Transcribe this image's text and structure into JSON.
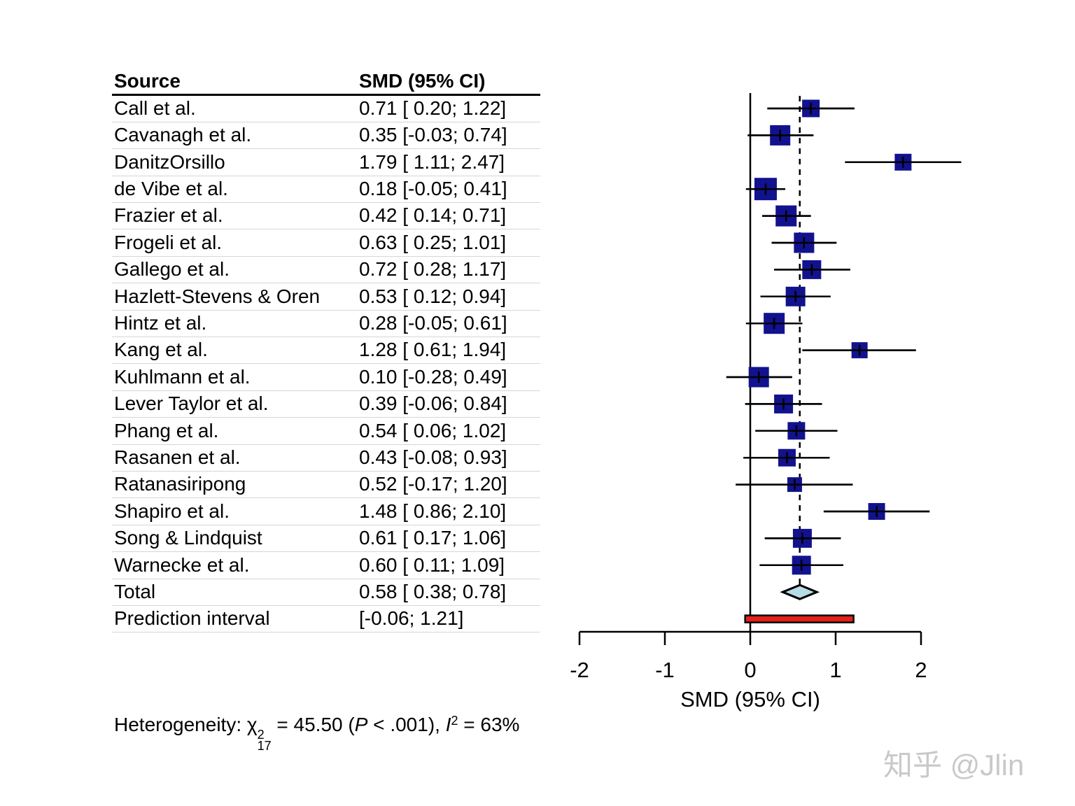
{
  "table": {
    "header": {
      "source": "Source",
      "value": "SMD (95% CI)"
    }
  },
  "heterogeneity": {
    "prefix": "Heterogeneity: ",
    "chi": "χ",
    "chi_sup": "2",
    "chi_sub": "17",
    "mid1": " = 45.50 (",
    "p": "P",
    "mid2": " < .001), ",
    "i": "I",
    "i_sup": "2",
    "suffix": " = 63%"
  },
  "watermark": {
    "text": "知乎 @Jlin"
  },
  "chart_data": {
    "type": "forest",
    "xlabel": "SMD (95% CI)",
    "x_ticks": [
      -2,
      -1,
      0,
      1,
      2
    ],
    "xlim": [
      -2,
      2.6
    ],
    "zero_line": 0,
    "pooled_estimate": 0.58,
    "grid": false,
    "colors": {
      "square": "#12128f",
      "diamond_fill": "#b7dce8",
      "prediction_fill": "#e32219",
      "line": "#000000",
      "separator": "#d6d6d6"
    },
    "studies": [
      {
        "label": "Call et al.",
        "smd": 0.71,
        "lower": 0.2,
        "upper": 1.22,
        "ci_text": "0.71 [ 0.20; 1.22]",
        "size": 25
      },
      {
        "label": "Cavanagh et al.",
        "smd": 0.35,
        "lower": -0.03,
        "upper": 0.74,
        "ci_text": "0.35 [-0.03; 0.74]",
        "size": 29
      },
      {
        "label": "DanitzOrsillo",
        "smd": 1.79,
        "lower": 1.11,
        "upper": 2.47,
        "ci_text": "1.79 [ 1.11; 2.47]",
        "size": 24
      },
      {
        "label": "de Vibe et al.",
        "smd": 0.18,
        "lower": -0.05,
        "upper": 0.41,
        "ci_text": "0.18 [-0.05; 0.41]",
        "size": 32
      },
      {
        "label": "Frazier et al.",
        "smd": 0.42,
        "lower": 0.14,
        "upper": 0.71,
        "ci_text": "0.42 [ 0.14; 0.71]",
        "size": 30
      },
      {
        "label": "Frogeli et al.",
        "smd": 0.63,
        "lower": 0.25,
        "upper": 1.01,
        "ci_text": "0.63 [ 0.25; 1.01]",
        "size": 29
      },
      {
        "label": "Gallego et al.",
        "smd": 0.72,
        "lower": 0.28,
        "upper": 1.17,
        "ci_text": "0.72 [ 0.28; 1.17]",
        "size": 27
      },
      {
        "label": "Hazlett-Stevens & Oren",
        "smd": 0.53,
        "lower": 0.12,
        "upper": 0.94,
        "ci_text": "0.53 [ 0.12; 0.94]",
        "size": 28
      },
      {
        "label": "Hintz et al.",
        "smd": 0.28,
        "lower": -0.05,
        "upper": 0.61,
        "ci_text": "0.28 [-0.05; 0.61]",
        "size": 30
      },
      {
        "label": "Kang et al.",
        "smd": 1.28,
        "lower": 0.61,
        "upper": 1.94,
        "ci_text": "1.28 [ 0.61; 1.94]",
        "size": 23
      },
      {
        "label": "Kuhlmann et al.",
        "smd": 0.1,
        "lower": -0.28,
        "upper": 0.49,
        "ci_text": "0.10 [-0.28; 0.49]",
        "size": 29
      },
      {
        "label": "Lever Taylor et al.",
        "smd": 0.39,
        "lower": -0.06,
        "upper": 0.84,
        "ci_text": "0.39 [-0.06; 0.84]",
        "size": 27
      },
      {
        "label": "Phang et al.",
        "smd": 0.54,
        "lower": 0.06,
        "upper": 1.02,
        "ci_text": "0.54 [ 0.06; 1.02]",
        "size": 25
      },
      {
        "label": "Rasanen et al.",
        "smd": 0.43,
        "lower": -0.08,
        "upper": 0.93,
        "ci_text": "0.43 [-0.08; 0.93]",
        "size": 25
      },
      {
        "label": "Ratanasiripong",
        "smd": 0.52,
        "lower": -0.17,
        "upper": 1.2,
        "ci_text": "0.52 [-0.17; 1.20]",
        "size": 21
      },
      {
        "label": "Shapiro et al.",
        "smd": 1.48,
        "lower": 0.86,
        "upper": 2.1,
        "ci_text": "1.48 [ 0.86; 2.10]",
        "size": 24
      },
      {
        "label": "Song & Lindquist",
        "smd": 0.61,
        "lower": 0.17,
        "upper": 1.06,
        "ci_text": "0.61 [ 0.17; 1.06]",
        "size": 27
      },
      {
        "label": "Warnecke et al.",
        "smd": 0.6,
        "lower": 0.11,
        "upper": 1.09,
        "ci_text": "0.60 [ 0.11; 1.09]",
        "size": 27
      }
    ],
    "total": {
      "label": "Total",
      "smd": 0.58,
      "lower": 0.38,
      "upper": 0.78,
      "ci_text": "0.58 [ 0.38; 0.78]"
    },
    "prediction": {
      "label": "Prediction interval",
      "lower": -0.06,
      "upper": 1.21,
      "ci_text": "[-0.06; 1.21]"
    }
  }
}
